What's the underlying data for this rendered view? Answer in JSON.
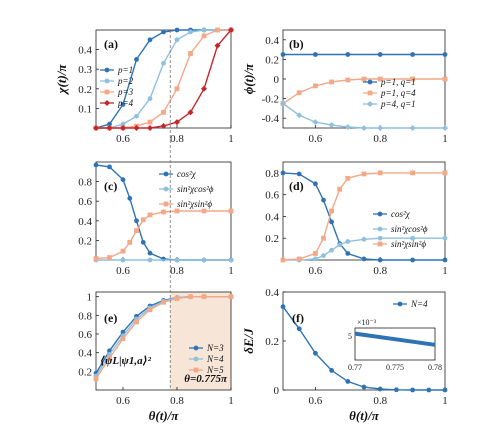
{
  "colors": {
    "blue": "#2f73b5",
    "lightblue": "#8fc0de",
    "salmon": "#f3a887",
    "red": "#c5262b",
    "shade": "#f7e6d8",
    "dash": "#777777"
  },
  "chart_data": [
    {
      "panel": "(a)",
      "type": "line",
      "ylabel": "χ(t)/π",
      "xlim": [
        0.5,
        1
      ],
      "ylim": [
        0,
        0.5
      ],
      "xticks": [
        "0.6",
        "0.8",
        "1"
      ],
      "yticks": [
        "0.1",
        "0.2",
        "0.3",
        "0.4"
      ],
      "legend_position": "center-left",
      "series": [
        {
          "name": "p=1",
          "color": "blue",
          "marker": "circle",
          "x": [
            0.5,
            0.55,
            0.6,
            0.65,
            0.7,
            0.75,
            0.8,
            0.85,
            0.9,
            0.95,
            1.0
          ],
          "values": [
            0.0,
            0.02,
            0.12,
            0.35,
            0.45,
            0.49,
            0.5,
            0.5,
            0.5,
            0.5,
            0.5
          ]
        },
        {
          "name": "p=2",
          "color": "lightblue",
          "marker": "circle",
          "x": [
            0.5,
            0.55,
            0.6,
            0.65,
            0.7,
            0.75,
            0.8,
            0.85,
            0.9,
            0.95,
            1.0
          ],
          "values": [
            0.0,
            0.0,
            0.02,
            0.06,
            0.15,
            0.33,
            0.45,
            0.49,
            0.5,
            0.5,
            0.5
          ]
        },
        {
          "name": "p=3",
          "color": "salmon",
          "marker": "square",
          "x": [
            0.5,
            0.55,
            0.6,
            0.65,
            0.7,
            0.75,
            0.8,
            0.85,
            0.9,
            0.95,
            1.0
          ],
          "values": [
            0.0,
            0.0,
            0.0,
            0.01,
            0.03,
            0.08,
            0.2,
            0.38,
            0.47,
            0.5,
            0.5
          ]
        },
        {
          "name": "p=4",
          "color": "red",
          "marker": "diamond",
          "x": [
            0.5,
            0.55,
            0.6,
            0.65,
            0.7,
            0.75,
            0.8,
            0.85,
            0.9,
            0.95,
            1.0
          ],
          "values": [
            0.0,
            0.0,
            0.0,
            0.0,
            0.0,
            0.01,
            0.03,
            0.08,
            0.2,
            0.42,
            0.5
          ]
        }
      ]
    },
    {
      "panel": "(b)",
      "type": "line",
      "ylabel": "ϕ(t)/π",
      "xlim": [
        0.5,
        1
      ],
      "ylim": [
        -0.5,
        0.5
      ],
      "xticks": [
        "0.6",
        "0.8",
        "1"
      ],
      "yticks": [
        "-0.4",
        "-0.2",
        "0",
        "0.2",
        "0.4"
      ],
      "legend_position": "center-right",
      "series": [
        {
          "name": "p=1, q=1",
          "color": "blue",
          "marker": "circle",
          "x": [
            0.5,
            0.6,
            0.7,
            0.8,
            0.9,
            1.0
          ],
          "values": [
            0.25,
            0.25,
            0.25,
            0.25,
            0.25,
            0.25
          ]
        },
        {
          "name": "p=1, q=4",
          "color": "salmon",
          "marker": "square",
          "x": [
            0.5,
            0.55,
            0.6,
            0.65,
            0.7,
            0.75,
            0.8,
            0.9,
            1.0
          ],
          "values": [
            -0.25,
            -0.14,
            -0.07,
            -0.03,
            -0.01,
            0.0,
            0.0,
            0.0,
            0.0
          ]
        },
        {
          "name": "p=4, q=1",
          "color": "lightblue",
          "marker": "diamond",
          "x": [
            0.5,
            0.55,
            0.6,
            0.65,
            0.7,
            0.75,
            0.8,
            0.9,
            1.0
          ],
          "values": [
            -0.25,
            -0.37,
            -0.44,
            -0.47,
            -0.49,
            -0.5,
            -0.5,
            -0.5,
            -0.5
          ]
        }
      ]
    },
    {
      "panel": "(c)",
      "type": "line",
      "xlim": [
        0.5,
        1
      ],
      "ylim": [
        0,
        1
      ],
      "xticks": [
        "0.6",
        "0.8",
        "1"
      ],
      "yticks": [
        "0.2",
        "0.4",
        "0.6",
        "0.8"
      ],
      "legend_position": "top-right",
      "series": [
        {
          "name": "cos²χ",
          "color": "blue",
          "marker": "circle",
          "x": [
            0.5,
            0.55,
            0.6,
            0.625,
            0.65,
            0.675,
            0.7,
            0.75,
            0.8,
            0.9,
            1.0
          ],
          "values": [
            0.97,
            0.95,
            0.82,
            0.63,
            0.4,
            0.18,
            0.07,
            0.01,
            0.0,
            0.0,
            0.0
          ]
        },
        {
          "name": "sin²χcos²ϕ",
          "color": "lightblue",
          "marker": "circle",
          "x": [
            0.5,
            0.6,
            0.7,
            0.8,
            0.9,
            1.0
          ],
          "values": [
            0.0,
            0.0,
            0.0,
            0.0,
            0.0,
            0.0
          ]
        },
        {
          "name": "sin²χsin²ϕ",
          "color": "salmon",
          "marker": "square",
          "x": [
            0.5,
            0.55,
            0.6,
            0.625,
            0.65,
            0.675,
            0.7,
            0.75,
            0.8,
            0.9,
            1.0
          ],
          "values": [
            0.015,
            0.025,
            0.09,
            0.18,
            0.3,
            0.41,
            0.46,
            0.49,
            0.5,
            0.5,
            0.5
          ]
        }
      ]
    },
    {
      "panel": "(d)",
      "type": "line",
      "xlim": [
        0.5,
        1
      ],
      "ylim": [
        0,
        0.9
      ],
      "xticks": [
        "0.6",
        "0.8",
        "1"
      ],
      "yticks": [
        "0.2",
        "0.4",
        "0.6",
        "0.8"
      ],
      "legend_position": "center-right",
      "series": [
        {
          "name": "cos²χ",
          "color": "blue",
          "marker": "circle",
          "x": [
            0.5,
            0.55,
            0.6,
            0.625,
            0.65,
            0.675,
            0.7,
            0.75,
            0.8,
            0.9,
            1.0
          ],
          "values": [
            0.8,
            0.79,
            0.7,
            0.55,
            0.35,
            0.15,
            0.06,
            0.01,
            0.0,
            0.0,
            0.0
          ]
        },
        {
          "name": "sin²χcos²ϕ",
          "color": "lightblue",
          "marker": "circle",
          "x": [
            0.5,
            0.55,
            0.6,
            0.625,
            0.65,
            0.675,
            0.7,
            0.75,
            0.8,
            0.9,
            1.0
          ],
          "values": [
            0.0,
            0.0,
            0.01,
            0.04,
            0.09,
            0.14,
            0.17,
            0.19,
            0.2,
            0.2,
            0.2
          ]
        },
        {
          "name": "sin²χsin²ϕ",
          "color": "salmon",
          "marker": "square",
          "x": [
            0.5,
            0.55,
            0.6,
            0.625,
            0.65,
            0.675,
            0.7,
            0.75,
            0.8,
            0.9,
            1.0
          ],
          "values": [
            0.0,
            0.01,
            0.06,
            0.2,
            0.45,
            0.65,
            0.75,
            0.79,
            0.8,
            0.8,
            0.8
          ]
        }
      ]
    },
    {
      "panel": "(e)",
      "type": "line",
      "xlabel": "θ(t)/π",
      "xlim": [
        0.5,
        1
      ],
      "ylim": [
        0,
        1.05
      ],
      "xticks": [
        "0.6",
        "0.8",
        "1"
      ],
      "yticks": [
        "0.2",
        "0.4",
        "0.6",
        "0.8",
        "1"
      ],
      "legend_position": "center-right",
      "annotation": "θ=0.775π",
      "in_plot_label": "⟨ψL|ψ1,a⟩²",
      "shaded_from_x": 0.775,
      "series": [
        {
          "name": "N=3",
          "color": "blue",
          "marker": "circle",
          "x": [
            0.5,
            0.55,
            0.6,
            0.65,
            0.7,
            0.75,
            0.8,
            0.85,
            0.9,
            1.0
          ],
          "values": [
            0.18,
            0.42,
            0.62,
            0.79,
            0.9,
            0.96,
            0.99,
            1.0,
            1.0,
            1.0
          ]
        },
        {
          "name": "N=4",
          "color": "lightblue",
          "marker": "circle",
          "x": [
            0.5,
            0.55,
            0.6,
            0.65,
            0.7,
            0.75,
            0.8,
            0.85,
            0.9,
            1.0
          ],
          "values": [
            0.15,
            0.38,
            0.58,
            0.76,
            0.88,
            0.95,
            0.99,
            1.0,
            1.0,
            1.0
          ]
        },
        {
          "name": "N=5",
          "color": "salmon",
          "marker": "square",
          "x": [
            0.5,
            0.55,
            0.6,
            0.65,
            0.7,
            0.75,
            0.8,
            0.85,
            0.9,
            1.0
          ],
          "values": [
            0.12,
            0.34,
            0.55,
            0.73,
            0.86,
            0.94,
            0.98,
            1.0,
            1.0,
            1.0
          ]
        }
      ]
    },
    {
      "panel": "(f)",
      "type": "line",
      "xlabel": "θ(t)/π",
      "ylabel": "δE/J",
      "xlim": [
        0.5,
        1
      ],
      "ylim": [
        0,
        0.4
      ],
      "xticks": [
        "0.6",
        "0.8",
        "1"
      ],
      "yticks": [
        "0",
        "0.2",
        "0.4"
      ],
      "legend_position": "top-right",
      "series": [
        {
          "name": "N=4",
          "color": "blue",
          "marker": "circle",
          "x": [
            0.5,
            0.55,
            0.6,
            0.65,
            0.7,
            0.75,
            0.8,
            0.85,
            0.9,
            0.95,
            1.0
          ],
          "values": [
            0.34,
            0.25,
            0.15,
            0.08,
            0.035,
            0.012,
            0.004,
            0.001,
            0.0,
            0.0,
            0.0
          ]
        }
      ],
      "inset": {
        "xlim": [
          0.77,
          0.78
        ],
        "ylim": [
          2,
          6
        ],
        "xticks": [
          "0.77",
          "0.775",
          "0.78"
        ],
        "yticks": [
          "5"
        ],
        "exponent_label": "×10⁻³",
        "series": [
          {
            "color": "blue",
            "x": [
              0.77,
              0.78
            ],
            "values": [
              5.3,
              3.9
            ]
          }
        ]
      }
    }
  ]
}
